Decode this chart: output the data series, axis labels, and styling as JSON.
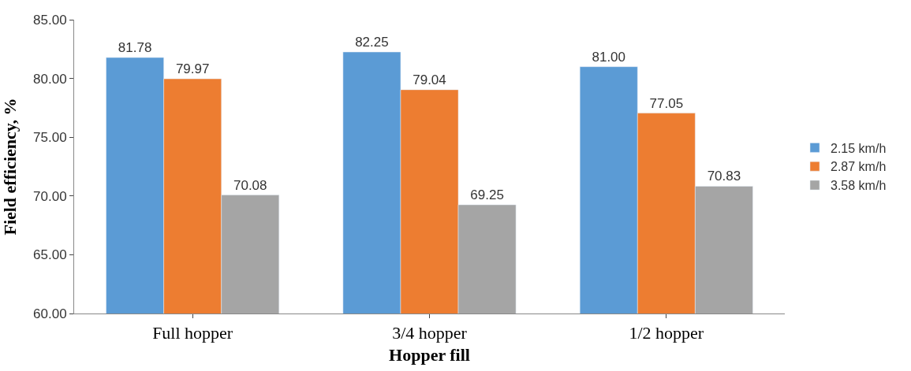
{
  "chart_data": {
    "type": "bar",
    "xlabel": "Hopper fill",
    "ylabel": "Field efficiency, %",
    "categories": [
      "Full hopper",
      "3/4 hopper",
      "1/2 hopper"
    ],
    "series": [
      {
        "name": "2.15 km/h",
        "color": "#5b9bd5",
        "values": [
          81.78,
          82.25,
          81.0
        ],
        "value_labels": [
          "81.78",
          "82.25",
          "81.00"
        ]
      },
      {
        "name": "2.87 km/h",
        "color": "#ed7d31",
        "values": [
          79.97,
          79.04,
          77.05
        ],
        "value_labels": [
          "79.97",
          "79.04",
          "77.05"
        ]
      },
      {
        "name": "3.58 km/h",
        "color": "#a5a5a5",
        "values": [
          70.08,
          69.25,
          70.83
        ],
        "value_labels": [
          "70.08",
          "69.25",
          "70.83"
        ]
      }
    ],
    "ylim": [
      60,
      85
    ],
    "yticks": [
      {
        "value": 60,
        "label": "60.00"
      },
      {
        "value": 65,
        "label": "65.00"
      },
      {
        "value": 70,
        "label": "70.00"
      },
      {
        "value": 75,
        "label": "75.00"
      },
      {
        "value": 80,
        "label": "80.00"
      },
      {
        "value": 85,
        "label": "85.00"
      }
    ],
    "grid": false,
    "legend": "right"
  }
}
